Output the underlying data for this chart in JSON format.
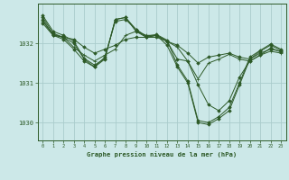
{
  "title": "Graphe pression niveau de la mer (hPa)",
  "bg_color": "#cce8e8",
  "grid_color": "#aacccc",
  "line_color": "#2d5a27",
  "xlim": [
    -0.5,
    23.5
  ],
  "ylim": [
    1029.55,
    1033.0
  ],
  "yticks": [
    1030,
    1031,
    1032
  ],
  "xticks": [
    0,
    1,
    2,
    3,
    4,
    5,
    6,
    7,
    8,
    9,
    10,
    11,
    12,
    13,
    14,
    15,
    16,
    17,
    18,
    19,
    20,
    21,
    22,
    23
  ],
  "series": [
    {
      "x": [
        0,
        1,
        2,
        3,
        4,
        5,
        6,
        7,
        8,
        9,
        10,
        11,
        12,
        13,
        14,
        15,
        16,
        17,
        18,
        19,
        20,
        21,
        22,
        23
      ],
      "y": [
        1032.5,
        1032.2,
        1032.15,
        1032.1,
        1031.9,
        1031.75,
        1031.85,
        1031.95,
        1032.1,
        1032.15,
        1032.15,
        1032.15,
        1032.05,
        1031.95,
        1031.75,
        1031.5,
        1031.65,
        1031.7,
        1031.75,
        1031.65,
        1031.6,
        1031.75,
        1031.85,
        1031.8
      ],
      "marker": "D",
      "markersize": 1.8,
      "lw": 0.7
    },
    {
      "x": [
        0,
        1,
        2,
        3,
        4,
        5,
        6,
        7,
        8,
        9,
        10,
        11,
        12,
        13,
        14,
        15,
        16,
        17,
        18,
        19,
        20,
        21,
        22,
        23
      ],
      "y": [
        1032.55,
        1032.22,
        1032.15,
        1031.9,
        1031.7,
        1031.55,
        1031.7,
        1031.85,
        1032.2,
        1032.3,
        1032.2,
        1032.2,
        1032.05,
        1031.9,
        1031.55,
        1031.1,
        1031.5,
        1031.6,
        1031.72,
        1031.6,
        1031.55,
        1031.7,
        1031.8,
        1031.75
      ],
      "marker": "+",
      "markersize": 3.5,
      "lw": 0.7
    },
    {
      "x": [
        0,
        1,
        2,
        3,
        4,
        5,
        6,
        7,
        8,
        9,
        10,
        11,
        12,
        13,
        14,
        15,
        16,
        17,
        18,
        19,
        20,
        21,
        22,
        23
      ],
      "y": [
        1032.6,
        1032.2,
        1032.1,
        1031.85,
        1031.55,
        1031.4,
        1031.65,
        1032.55,
        1032.6,
        1032.35,
        1032.15,
        1032.2,
        1032.05,
        1031.6,
        1031.55,
        1030.95,
        1030.45,
        1030.3,
        1030.55,
        1031.15,
        1031.55,
        1031.7,
        1031.88,
        1031.78
      ],
      "marker": "D",
      "markersize": 1.8,
      "lw": 0.7
    },
    {
      "x": [
        0,
        1,
        2,
        3,
        4,
        5,
        6,
        7,
        8,
        9,
        10,
        11,
        12,
        13,
        14,
        15,
        16,
        17,
        18,
        19,
        20,
        21,
        22,
        23
      ],
      "y": [
        1032.65,
        1032.25,
        1032.15,
        1032.0,
        1031.6,
        1031.4,
        1031.6,
        1032.6,
        1032.65,
        1032.3,
        1032.15,
        1032.2,
        1031.95,
        1031.4,
        1031.0,
        1030.0,
        1029.95,
        1030.1,
        1030.3,
        1030.95,
        1031.6,
        1031.8,
        1031.95,
        1031.82
      ],
      "marker": "D",
      "markersize": 1.8,
      "lw": 0.7
    },
    {
      "x": [
        0,
        1,
        2,
        3,
        4,
        5,
        6,
        7,
        8,
        9,
        10,
        11,
        12,
        13,
        14,
        15,
        16,
        17,
        18,
        19,
        20,
        21,
        22,
        23
      ],
      "y": [
        1032.7,
        1032.3,
        1032.2,
        1032.05,
        1031.62,
        1031.45,
        1031.62,
        1032.6,
        1032.65,
        1032.35,
        1032.18,
        1032.22,
        1032.08,
        1031.45,
        1031.05,
        1030.05,
        1030.0,
        1030.15,
        1030.38,
        1031.0,
        1031.65,
        1031.82,
        1031.98,
        1031.85
      ],
      "marker": "D",
      "markersize": 1.8,
      "lw": 0.7
    }
  ]
}
